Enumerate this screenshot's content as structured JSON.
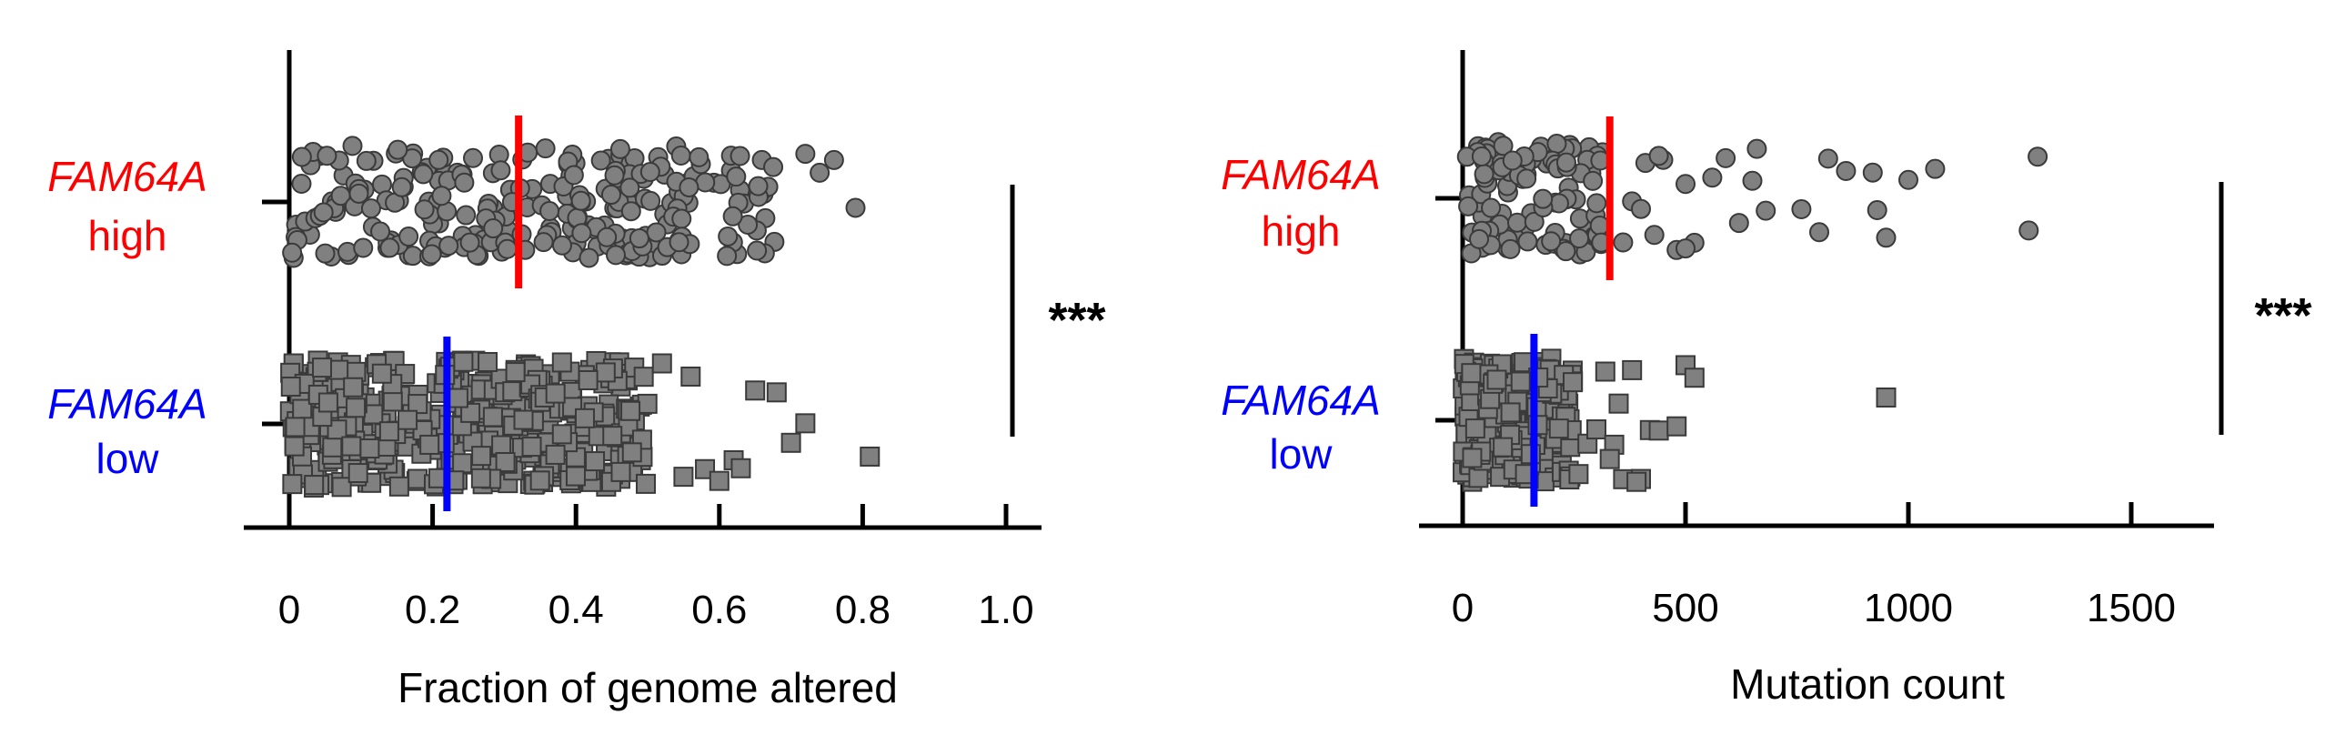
{
  "colors": {
    "high": "#ff0000",
    "low": "#0000ff",
    "point_fill": "#808080",
    "point_stroke": "#3a3a3a",
    "axis": "#000000"
  },
  "chart_data": [
    {
      "type": "scatter",
      "subtype": "dot-strip",
      "xlabel": "Fraction of genome altered",
      "xlim": [
        0,
        1.0
      ],
      "xticks": [
        "0",
        "0.2",
        "0.4",
        "0.6",
        "0.8",
        "1.0"
      ],
      "groups": [
        {
          "name": "FAM64A",
          "level": "high",
          "color": "#ff0000",
          "marker": "circle",
          "mean": 0.32,
          "range": [
            0.0,
            0.79
          ]
        },
        {
          "name": "FAM64A",
          "level": "low",
          "color": "#0000ff",
          "marker": "square",
          "mean": 0.22,
          "range": [
            0.0,
            0.81
          ]
        }
      ],
      "significance": "***"
    },
    {
      "type": "scatter",
      "subtype": "dot-strip",
      "xlabel": "Mutation count",
      "xlim": [
        0,
        1600
      ],
      "xticks": [
        "0",
        "500",
        "1000",
        "1500"
      ],
      "groups": [
        {
          "name": "FAM64A",
          "level": "high",
          "color": "#ff0000",
          "marker": "circle",
          "mean": 330,
          "range": [
            15,
            1290
          ]
        },
        {
          "name": "FAM64A",
          "level": "low",
          "color": "#0000ff",
          "marker": "square",
          "mean": 160,
          "range": [
            5,
            950
          ]
        }
      ],
      "significance": "***"
    }
  ]
}
